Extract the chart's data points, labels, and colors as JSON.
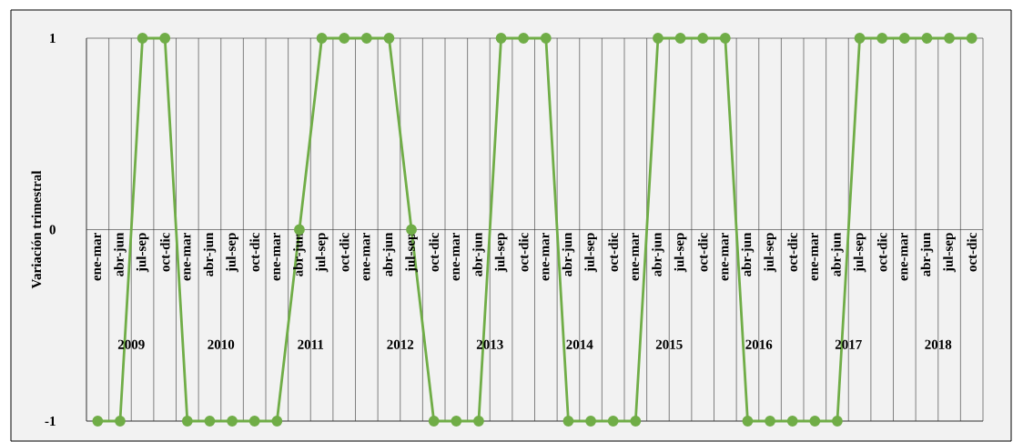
{
  "chart_data": {
    "type": "line",
    "ylabel": "Variación trimestral",
    "categories": [
      "ene-mar",
      "abr-jun",
      "jul-sep",
      "oct-dic",
      "ene-mar",
      "abr-jun",
      "jul-sep",
      "oct-dic",
      "ene-mar",
      "abr-jun",
      "jul-sep",
      "oct-dic",
      "ene-mar",
      "abr-jun",
      "jul-sep",
      "oct-dic",
      "ene-mar",
      "abr-jun",
      "jul-sep",
      "oct-dic",
      "ene-mar",
      "abr-jun",
      "jul-sep",
      "oct-dic",
      "ene-mar",
      "abr-jun",
      "jul-sep",
      "oct-dic",
      "ene-mar",
      "abr-jun",
      "jul-sep",
      "oct-dic",
      "ene-mar",
      "abr-jun",
      "jul-sep",
      "oct-dic",
      "ene-mar",
      "abr-jun",
      "jul-sep",
      "oct-dic"
    ],
    "series": [
      {
        "color": "#70ad47",
        "values": [
          -1,
          -1,
          1,
          1,
          -1,
          -1,
          -1,
          -1,
          -1,
          0,
          1,
          1,
          1,
          1,
          0,
          -1,
          -1,
          -1,
          1,
          1,
          1,
          -1,
          -1,
          -1,
          -1,
          1,
          1,
          1,
          1,
          -1,
          -1,
          -1,
          -1,
          -1,
          1,
          1,
          1,
          1,
          1,
          1
        ]
      }
    ],
    "annotations": [
      "2009",
      "2010",
      "2011",
      "2012",
      "2013",
      "2014",
      "2015",
      "2016",
      "2017",
      "2018"
    ],
    "ylim": [
      -1,
      1
    ],
    "yticks": [
      -1,
      0,
      1
    ],
    "grid": true,
    "marker": "circle",
    "line_style": "solid"
  }
}
